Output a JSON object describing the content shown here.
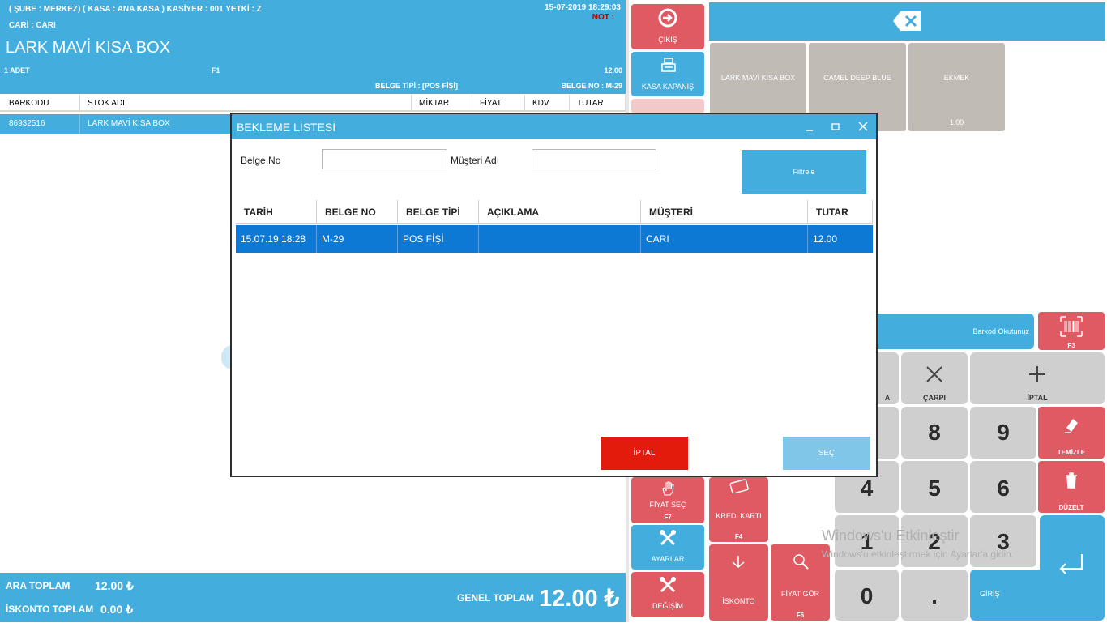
{
  "header": {
    "info_line": "( ŞUBE : MERKEZ) ( KASA : ANA KASA ) KASİYER : 001 YETKİ : Z",
    "datetime": "15-07-2019 18:29:03",
    "cari": "CARİ : CARI",
    "not": "NOT :",
    "product_title": "LARK MAVİ KISA BOX",
    "qty": "1 ADET",
    "price_list": "F1",
    "price": "12.00",
    "belge_tipi": "BELGE TİPİ : [POS FİŞİ]",
    "belge_no": "BELGE NO :  M-29"
  },
  "grid": {
    "columns": [
      "BARKODU",
      "STOK ADI",
      "MİKTAR",
      "FİYAT",
      "KDV",
      "TUTAR"
    ],
    "rows": [
      {
        "barkod": "86932516",
        "stok": "LARK MAVİ KISA BOX"
      }
    ]
  },
  "footer": {
    "ara_label": "ARA TOPLAM",
    "ara_value": "12.00 ₺",
    "iskonto_label": "İSKONTO TOPLAM",
    "iskonto_value": "0.00 ₺",
    "genel_label": "GENEL TOPLAM",
    "genel_value": "12.00 ₺"
  },
  "side_buttons": {
    "cikis": "ÇIKIŞ",
    "kasa": "KASA KAPANIŞ",
    "fiyat_sec": "FİYAT SEÇ",
    "fiyat_sec_key": "F7",
    "ayarlar": "AYARLAR",
    "degisim": "DEĞİŞİM",
    "kredi": "KREDİ KARTI",
    "kredi_key": "F4",
    "iskonto": "İSKONTO",
    "fiyat_gor": "FİYAT GÖR",
    "fiyat_gor_key": "F6"
  },
  "products": [
    {
      "name": "LARK MAVİ KISA BOX",
      "price": ""
    },
    {
      "name": "CAMEL DEEP BLUE",
      "price": ""
    },
    {
      "name": "EKMEK",
      "price": "1.00"
    }
  ],
  "barcode": {
    "label": "Barkod Okutunuz",
    "key": "F3"
  },
  "keypad": {
    "carpi": "ÇARPI",
    "iptal": "İPTAL",
    "temizle": "TEMİZLE",
    "duzelt": "DÜZELT",
    "giris": "GİRİŞ",
    "partial": "A",
    "digits": [
      "8",
      "9",
      "4",
      "5",
      "6",
      "1",
      "2",
      "3",
      "0",
      "."
    ]
  },
  "modal": {
    "title": "BEKLEME LİSTESİ",
    "belge_no_label": "Belge No",
    "musteri_label": "Müşteri Adı",
    "belge_no_value": "",
    "musteri_value": "",
    "filter_label": "Filtrele",
    "columns": [
      "TARİH",
      "BELGE NO",
      "BELGE TİPİ",
      "AÇIKLAMA",
      "MÜŞTERİ",
      "TUTAR"
    ],
    "row": {
      "tarih": "15.07.19 18:28",
      "belge_no": "M-29",
      "belge_tipi": "POS FİŞİ",
      "aciklama": "",
      "musteri": "CARI",
      "tutar": "12.00"
    },
    "cancel_label": "İPTAL",
    "select_label": "SEÇ"
  },
  "watermark": {
    "line1": "Windows'u Etkinleştir",
    "line2": "Windows'u etkinleştirmek için Ayarlar'a gidin."
  },
  "colors": {
    "accent": "#43aedd",
    "danger": "#e05a63",
    "selection": "#0e78d5",
    "cancel": "#e31b0d"
  }
}
